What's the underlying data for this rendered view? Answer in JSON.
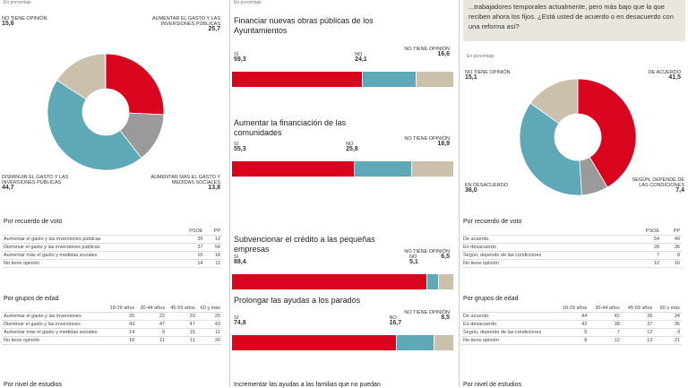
{
  "colors": {
    "red": "#d9041e",
    "blue": "#5fa8b8",
    "gray": "#9a9a9c",
    "beige": "#cbc0ac"
  },
  "chart_data": [
    {
      "type": "pie",
      "donut": true,
      "unit": "En porcentaje",
      "slices": [
        {
          "label": "Aumentar el gasto y las inversiones públicas",
          "value": 25.7,
          "color": "#d9041e"
        },
        {
          "label": "Aumentar más el gasto y medidas sociales",
          "value": 13.8,
          "color": "#9a9a9c"
        },
        {
          "label": "Disminuir el gasto y las inversiones públicas",
          "value": 44.7,
          "color": "#5fa8b8"
        },
        {
          "label": "No tiene opinión",
          "value": 15.6,
          "color": "#cbc0ac"
        }
      ]
    },
    {
      "type": "bar",
      "stacked": true,
      "categories": [
        "Sí",
        "No",
        "No tiene opinión"
      ],
      "items": [
        {
          "title": "Financiar nuevas obras públicas de los Ayuntamientos",
          "values": [
            59.3,
            24.1,
            16.6
          ]
        },
        {
          "title": "Aumentar la financiación de las comunidades",
          "values": [
            55.3,
            25.8,
            18.9
          ]
        },
        {
          "title": "Subvencionar el crédito a las pequeñas empresas",
          "values": [
            88.4,
            5.1,
            6.5
          ]
        },
        {
          "title": "Prolongar las ayudas a los parados",
          "values": [
            74.8,
            16.7,
            8.5
          ]
        }
      ]
    },
    {
      "type": "pie",
      "donut": true,
      "unit": "En porcentaje",
      "slices": [
        {
          "label": "De acuerdo",
          "value": 41.5,
          "color": "#d9041e"
        },
        {
          "label": "Según, depende de las condiciones",
          "value": 7.4,
          "color": "#9a9a9c"
        },
        {
          "label": "En desacuerdo",
          "value": 36.0,
          "color": "#5fa8b8"
        },
        {
          "label": "No tiene opinión",
          "value": 15.1,
          "color": "#cbc0ac"
        }
      ]
    }
  ],
  "left": {
    "unit": "En porcentaje",
    "vote": {
      "title": "Por recuerdo de voto",
      "headers": [
        "",
        "PSOE",
        "PP"
      ],
      "rows": [
        [
          "Aumentar el gasto y las inversiones públicas",
          "35",
          "12"
        ],
        [
          "Disminuir el gasto y las inversiones públicas",
          "37",
          "54"
        ],
        [
          "Aumentar más el gasto y medidas sociales",
          "15",
          "18"
        ],
        [
          "No tiene opinión",
          "14",
          "11"
        ]
      ]
    },
    "age": {
      "title": "Por grupos de edad",
      "headers": [
        "",
        "18-29 años",
        "30-44 años",
        "45-59 años",
        "60 y más"
      ],
      "rows": [
        [
          "Aumentar el gasto y las inversiones",
          "25",
          "22",
          "29",
          "25"
        ],
        [
          "Disminuir el gasto y las inversiones",
          "43",
          "47",
          "47",
          "43"
        ],
        [
          "Aumentar más el gasto y medidas sociales",
          "14",
          "9",
          "15",
          "11"
        ],
        [
          "No tiene opinión",
          "18",
          "11",
          "11",
          "20"
        ]
      ]
    },
    "next": "Por nivel de estudios"
  },
  "middle": {
    "unit": "En porcentaje",
    "labels": [
      "Sí",
      "No",
      "No tiene opinión"
    ],
    "next": "Incrementar las ayudas a las familias que no puedan"
  },
  "right": {
    "question": "...trabajadores temporales actualmente, pero más bajo que la que reciben ahora los fijos. ¿Está usted de acuerdo o en desacuerdo con una reforma así?",
    "unit": "En porcentaje",
    "vote": {
      "title": "Por recuerdo de voto",
      "headers": [
        "",
        "PSOE",
        "PP"
      ],
      "rows": [
        [
          "De acuerdo",
          "54",
          "40"
        ],
        [
          "En desacuerdo",
          "28",
          "36"
        ],
        [
          "Según, depende de las condiciones",
          "7",
          "8"
        ],
        [
          "No tiene opinión",
          "12",
          "16"
        ]
      ]
    },
    "age": {
      "title": "Por grupos de edad",
      "headers": [
        "",
        "18-29 años",
        "30-44 años",
        "45-59 años",
        "60 y más"
      ],
      "rows": [
        [
          "De acuerdo",
          "44",
          "42",
          "36",
          "34"
        ],
        [
          "En desacuerdo",
          "42",
          "38",
          "37",
          "36"
        ],
        [
          "Según, depende de las condiciones",
          "5",
          "7",
          "12",
          "9"
        ],
        [
          "No tiene opinión",
          "8",
          "12",
          "13",
          "21"
        ]
      ]
    },
    "next": "Por nivel de estudios"
  }
}
